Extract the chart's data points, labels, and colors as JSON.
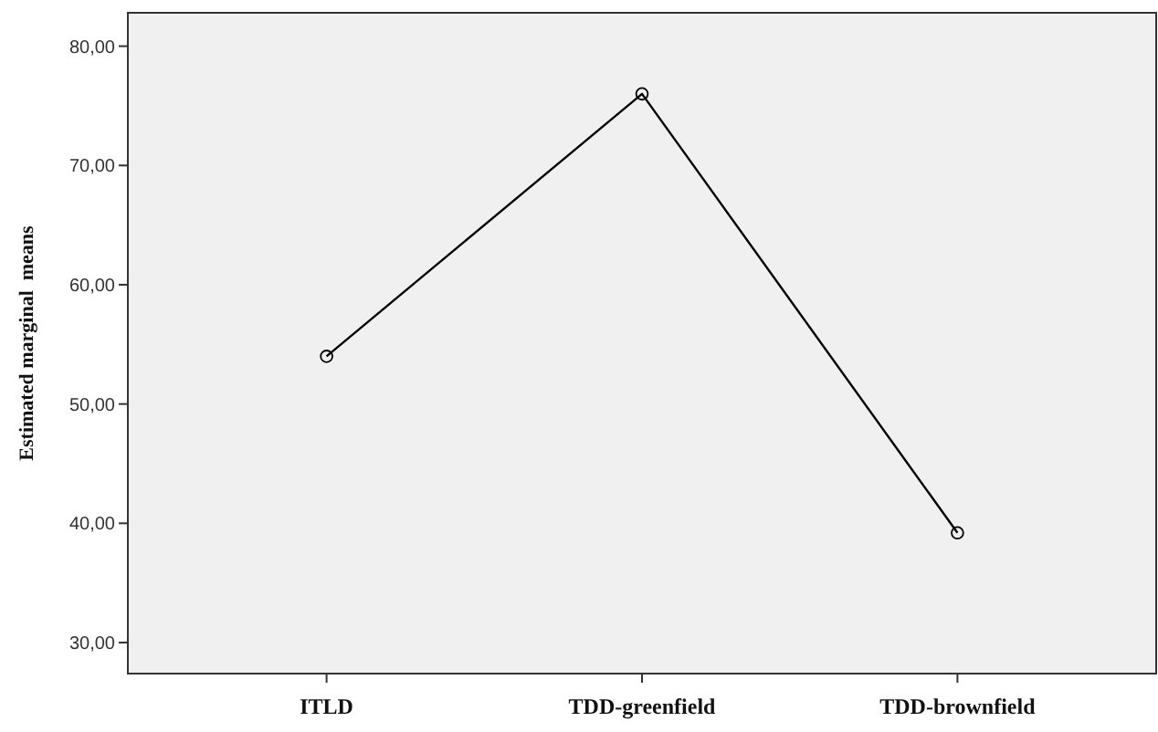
{
  "chart_data": {
    "type": "line",
    "ylabel": "Estimated marginal  means",
    "categories": [
      "ITLD",
      "TDD-greenfield",
      "TDD-brownfield"
    ],
    "series": [
      {
        "color": "#000000",
        "values": [
          54.0,
          76.0,
          39.2
        ]
      }
    ],
    "ylim": [
      27.4,
      82.8
    ],
    "yticks": [
      {
        "value": 30,
        "label": "30,00"
      },
      {
        "value": 40,
        "label": "40,00"
      },
      {
        "value": 50,
        "label": "50,00"
      },
      {
        "value": 60,
        "label": "60,00"
      },
      {
        "value": 70,
        "label": "70,00"
      },
      {
        "value": 80,
        "label": "80,00"
      }
    ],
    "marker": "circle",
    "line_style": "solid",
    "grid": false
  }
}
